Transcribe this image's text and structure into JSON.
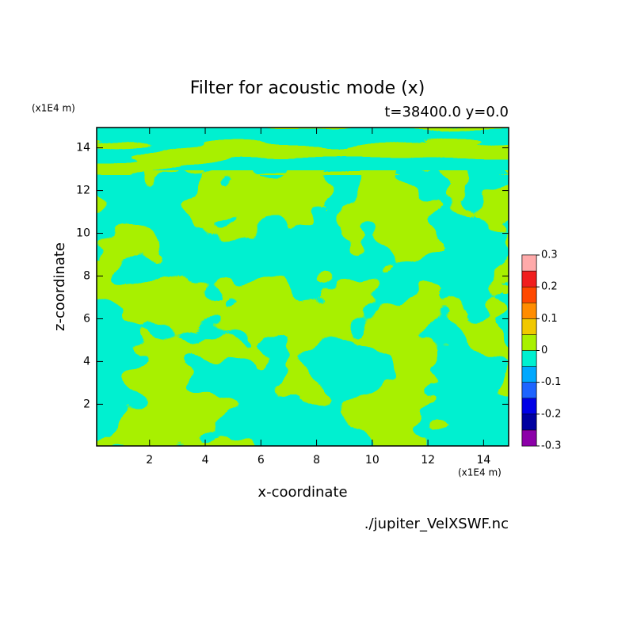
{
  "chart_data": {
    "type": "contour",
    "title": "Filter for acoustic mode (x)",
    "subtitle": "t=38400.0 y=0.0",
    "x_label": "x-coordinate",
    "y_label": "z-coordinate",
    "x_unit": "(x1E4 m)",
    "y_unit": "(x1E4 m)",
    "source": "./jupiter_VelXSWF.nc",
    "xlim": [
      0.1,
      14.9
    ],
    "ylim": [
      0.05,
      14.95
    ],
    "xticks": [
      2,
      4,
      6,
      8,
      10,
      12,
      14
    ],
    "yticks": [
      2,
      4,
      6,
      8,
      10,
      12,
      14
    ],
    "levels": [
      -0.3,
      -0.25,
      -0.2,
      -0.15,
      -0.1,
      -0.05,
      0,
      0.05,
      0.1,
      0.15,
      0.2,
      0.25,
      0.3
    ],
    "colors": [
      "#8c00a8",
      "#0000a0",
      "#0000e6",
      "#1e64ff",
      "#00a8ff",
      "#00f0d0",
      "#a8f000",
      "#f0c800",
      "#ff8c00",
      "#ff4800",
      "#f01e1e",
      "#ffaaaa"
    ],
    "colorbar_ticks": [
      -0.3,
      -0.2,
      -0.1,
      0,
      0.1,
      0.2,
      0.3
    ]
  }
}
